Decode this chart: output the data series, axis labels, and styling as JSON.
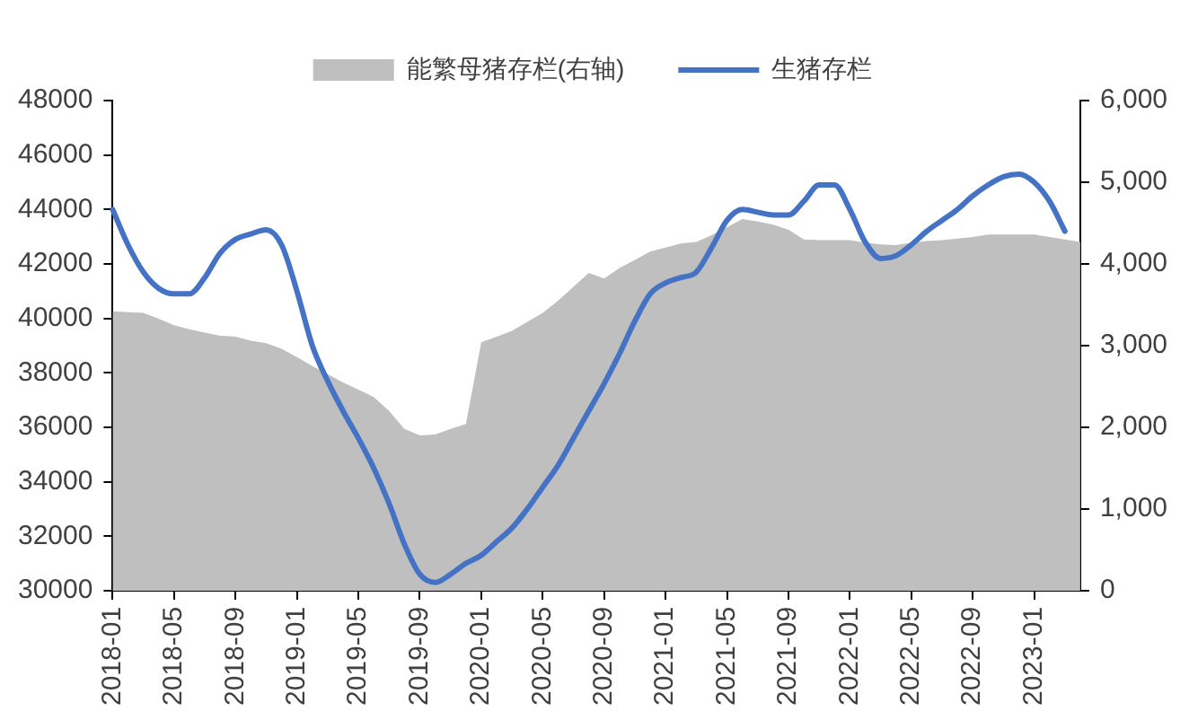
{
  "chart_data": {
    "type": "line",
    "categories": [
      "2018-01",
      null,
      null,
      null,
      "2018-05",
      null,
      null,
      null,
      "2018-09",
      null,
      null,
      null,
      "2019-01",
      null,
      null,
      null,
      "2019-05",
      null,
      null,
      null,
      "2019-09",
      null,
      null,
      null,
      "2020-01",
      null,
      null,
      null,
      "2020-05",
      null,
      null,
      null,
      "2020-09",
      null,
      null,
      null,
      "2021-01",
      null,
      null,
      null,
      "2021-05",
      null,
      null,
      null,
      "2021-09",
      null,
      null,
      null,
      "2022-01",
      null,
      null,
      null,
      "2022-05",
      null,
      null,
      null,
      "2022-09",
      null,
      null,
      null,
      "2023-01",
      null,
      null,
      null
    ],
    "series": [
      {
        "name": "能繁母猪存栏(右轴)",
        "type": "area",
        "axis": "y2",
        "color": "#bfbfbf",
        "values": [
          3420,
          3410,
          3400,
          3330,
          3250,
          3200,
          3160,
          3120,
          3110,
          3060,
          3030,
          2960,
          2860,
          2750,
          2650,
          2550,
          2460,
          2370,
          2200,
          1980,
          1900,
          1910,
          1980,
          2040,
          3040,
          3110,
          3180,
          3290,
          3400,
          3550,
          3720,
          3890,
          3820,
          3950,
          4050,
          4150,
          4200,
          4250,
          4270,
          4350,
          4450,
          4550,
          4520,
          4480,
          4420,
          4300,
          4290,
          4290,
          4290,
          4260,
          4240,
          4230,
          4260,
          4280,
          4290,
          4310,
          4330,
          4360,
          4360,
          4360,
          4360,
          4330,
          4300,
          4270
        ]
      },
      {
        "name": "生猪存栏",
        "color": "#4472c4",
        "values": [
          44000,
          42700,
          41700,
          41100,
          40900,
          40900,
          41500,
          42400,
          42900,
          43100,
          43250,
          42700,
          41000,
          39000,
          37700,
          36600,
          35600,
          34500,
          33200,
          31700,
          30600,
          30300,
          30600,
          31000,
          31300,
          31800,
          32300,
          33000,
          33800,
          34600,
          35600,
          36600,
          37600,
          38700,
          39900,
          40900,
          41300,
          41500,
          41700,
          42600,
          43600,
          44000,
          43900,
          43800,
          43800,
          44300,
          44900,
          44900,
          44000,
          42800,
          42200,
          42300,
          42700,
          43200,
          43600,
          44000,
          44500,
          44900,
          45200,
          45300,
          45000,
          44300,
          43200,
          null
        ]
      }
    ],
    "ylim": [
      30000,
      48000
    ],
    "yticks": [
      30000,
      32000,
      34000,
      36000,
      38000,
      40000,
      42000,
      44000,
      46000,
      48000
    ],
    "y2lim": [
      0,
      6000
    ],
    "y2ticks": [
      0,
      {
        "value": 1000,
        "label": "1,000"
      },
      {
        "value": 2000,
        "label": "2,000"
      },
      {
        "value": 3000,
        "label": "3,000"
      },
      {
        "value": 4000,
        "label": "4,000"
      },
      {
        "value": 5000,
        "label": "5,000"
      },
      {
        "value": 6000,
        "label": "6,000"
      }
    ],
    "legend": "top",
    "marker": "none"
  }
}
